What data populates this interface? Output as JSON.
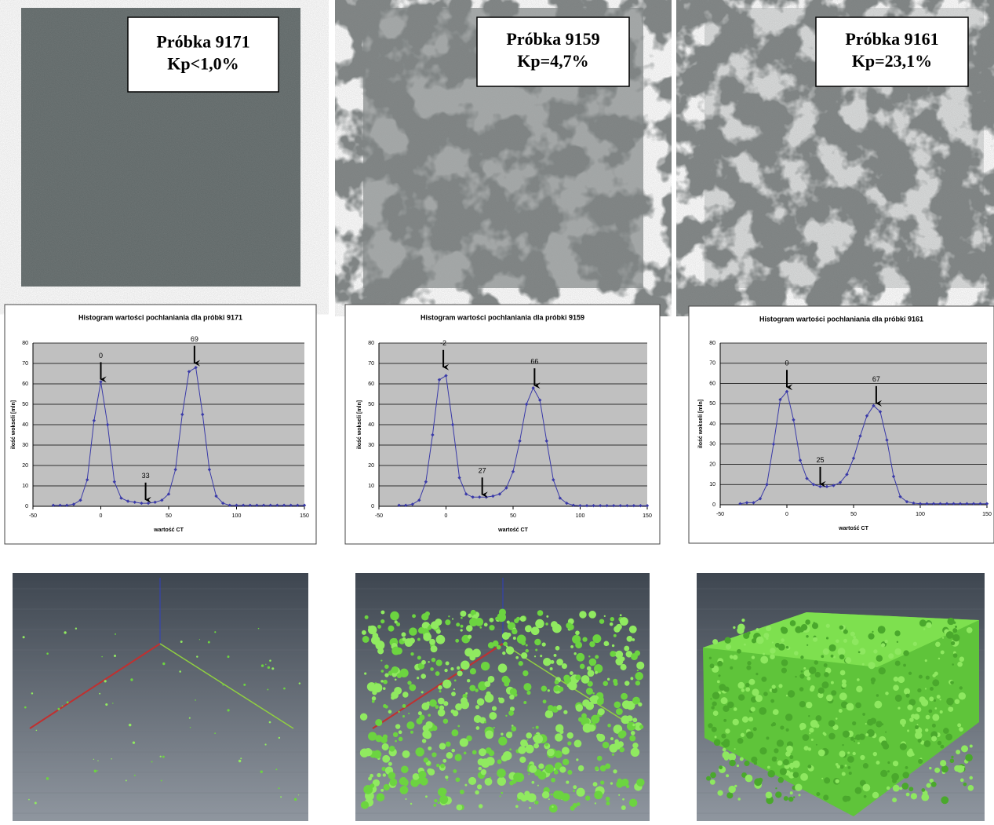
{
  "photos": [
    {
      "title": "Próbka 9171",
      "kp": "Kp<1,0%"
    },
    {
      "title": "Próbka 9159",
      "kp": "Kp=4,7%"
    },
    {
      "title": "Próbka 9161",
      "kp": "Kp=23,1%"
    }
  ],
  "chart_data": [
    {
      "type": "line",
      "title": "Histogram wartości pochlaniania dla próbki 9171",
      "x_label": "wartość CT",
      "y_label": "ilość wokseli [mln]",
      "x": [
        -35,
        -30,
        -25,
        -20,
        -15,
        -10,
        -5,
        0,
        5,
        10,
        15,
        20,
        25,
        30,
        35,
        40,
        45,
        50,
        55,
        60,
        65,
        70,
        75,
        80,
        85,
        90,
        95,
        100,
        105,
        110,
        115,
        120,
        125,
        130,
        135,
        140,
        145,
        150
      ],
      "series": [
        {
          "name": "ilość wokseli",
          "color": "#3a3aa8",
          "values": [
            0.5,
            0.5,
            0.5,
            1,
            3,
            13,
            42,
            61,
            40,
            12,
            4,
            2.5,
            2,
            1.5,
            1.5,
            2,
            3,
            6,
            18,
            45,
            66,
            68,
            45,
            18,
            5,
            1.5,
            0.5,
            0.5,
            0.5,
            0.5,
            0.5,
            0.5,
            0.5,
            0.5,
            0.5,
            0.5,
            0.5,
            0.5
          ]
        }
      ],
      "xlim": [
        -50,
        150
      ],
      "ylim": [
        0,
        80
      ],
      "xticks": [
        -50,
        0,
        50,
        100,
        150
      ],
      "yticks": [
        0,
        10,
        20,
        30,
        40,
        50,
        60,
        70,
        80
      ],
      "grid": true,
      "annotations": [
        {
          "text": "0",
          "x": 0,
          "y": 61
        },
        {
          "text": "69",
          "x": 69,
          "y": 69
        },
        {
          "text": "33",
          "x": 33,
          "y": 2
        }
      ]
    },
    {
      "type": "line",
      "title": "Histogram wartości pochlaniania dla próbki 9159",
      "x_label": "wartość CT",
      "y_label": "ilość wokseli [mln]",
      "x": [
        -35,
        -30,
        -25,
        -20,
        -15,
        -10,
        -5,
        0,
        5,
        10,
        15,
        20,
        25,
        30,
        35,
        40,
        45,
        50,
        55,
        60,
        65,
        70,
        75,
        80,
        85,
        90,
        95,
        100,
        105,
        110,
        115,
        120,
        125,
        130,
        135,
        140,
        145,
        150
      ],
      "series": [
        {
          "name": "ilość wokseli",
          "color": "#3a3aa8",
          "values": [
            0.5,
            0.5,
            1,
            3,
            12,
            35,
            62,
            64,
            40,
            14,
            6,
            4.5,
            4.5,
            4.5,
            5,
            6,
            9,
            17,
            32,
            50,
            58,
            52,
            32,
            13,
            4,
            1.5,
            0.5,
            0.3,
            0.3,
            0.3,
            0.3,
            0.3,
            0.3,
            0.3,
            0.3,
            0.3,
            0.3,
            0.3
          ]
        }
      ],
      "xlim": [
        -50,
        150
      ],
      "ylim": [
        0,
        80
      ],
      "xticks": [
        -50,
        0,
        50,
        100,
        150
      ],
      "yticks": [
        0,
        10,
        20,
        30,
        40,
        50,
        60,
        70,
        80
      ],
      "grid": true,
      "annotations": [
        {
          "text": "-2",
          "x": -2,
          "y": 67
        },
        {
          "text": "66",
          "x": 66,
          "y": 58
        },
        {
          "text": "27",
          "x": 27,
          "y": 4.5
        }
      ]
    },
    {
      "type": "line",
      "title": "Histogram wartości pochlaniania dla próbki 9161",
      "x_label": "wartość CT",
      "y_label": "ilość wokseli [mln]",
      "x": [
        -35,
        -30,
        -25,
        -20,
        -15,
        -10,
        -5,
        0,
        5,
        10,
        15,
        20,
        25,
        30,
        35,
        40,
        45,
        50,
        55,
        60,
        65,
        70,
        75,
        80,
        85,
        90,
        95,
        100,
        105,
        110,
        115,
        120,
        125,
        130,
        135,
        140,
        145,
        150
      ],
      "series": [
        {
          "name": "ilość wokseli",
          "color": "#3a3aa8",
          "values": [
            0.5,
            1,
            1,
            3,
            10,
            30,
            52,
            56,
            42,
            22,
            13,
            10,
            9,
            9,
            9.5,
            11,
            15,
            23,
            34,
            44,
            49,
            46,
            32,
            14,
            4,
            1.5,
            0.8,
            0.5,
            0.5,
            0.5,
            0.5,
            0.5,
            0.5,
            0.5,
            0.5,
            0.5,
            0.5,
            0.5
          ]
        }
      ],
      "xlim": [
        -50,
        150
      ],
      "ylim": [
        0,
        80
      ],
      "xticks": [
        -50,
        0,
        50,
        100,
        150
      ],
      "yticks": [
        0,
        10,
        20,
        30,
        40,
        50,
        60,
        70,
        80
      ],
      "grid": true,
      "annotations": [
        {
          "text": "0",
          "x": 0,
          "y": 57
        },
        {
          "text": "67",
          "x": 67,
          "y": 49
        },
        {
          "text": "25",
          "x": 25,
          "y": 9
        }
      ]
    }
  ]
}
